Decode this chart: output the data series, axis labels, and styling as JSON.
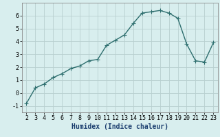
{
  "x": [
    2,
    3,
    4,
    5,
    6,
    7,
    8,
    9,
    10,
    11,
    12,
    13,
    14,
    15,
    16,
    17,
    18,
    19,
    20,
    21,
    22,
    23
  ],
  "y": [
    -0.8,
    0.4,
    0.7,
    1.2,
    1.5,
    1.9,
    2.1,
    2.5,
    2.6,
    3.7,
    4.1,
    4.5,
    5.4,
    6.2,
    6.3,
    6.4,
    6.2,
    5.8,
    3.8,
    2.5,
    2.4,
    3.9
  ],
  "line_color": "#2d6e6e",
  "marker": "+",
  "marker_color": "#2d6e6e",
  "bg_color": "#d8eeee",
  "grid_color": "#b8d0d0",
  "xlabel": "Humidex (Indice chaleur)",
  "xlim": [
    1.5,
    23.5
  ],
  "ylim": [
    -1.5,
    7.0
  ],
  "yticks": [
    -1,
    0,
    1,
    2,
    3,
    4,
    5,
    6
  ],
  "xticks": [
    2,
    3,
    4,
    5,
    6,
    7,
    8,
    9,
    10,
    11,
    12,
    13,
    14,
    15,
    16,
    17,
    18,
    19,
    20,
    21,
    22,
    23
  ],
  "xlabel_fontsize": 7,
  "tick_fontsize": 6,
  "line_width": 1.0,
  "marker_size": 4
}
